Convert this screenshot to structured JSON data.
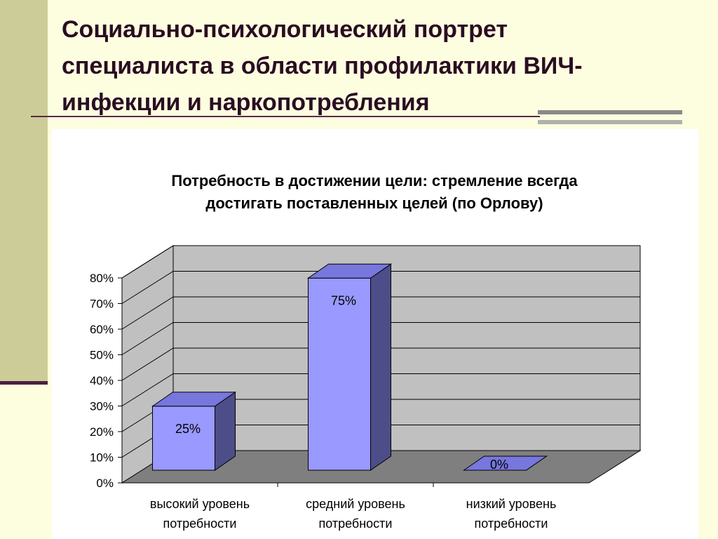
{
  "slide": {
    "title_lines": [
      "Социально-психологический портрет",
      "специалиста в области профилактики ВИЧ-",
      "инфекции и наркопотребления"
    ]
  },
  "chart_data": {
    "type": "bar",
    "title_lines": [
      "Потребность в достижении цели: стремление всегда",
      "достигать поставленных целей (по Орлову)"
    ],
    "categories": [
      [
        "высокий уровень",
        "потребности"
      ],
      [
        "средний уровень",
        "потребности"
      ],
      [
        "низкий уровень",
        "потребности"
      ]
    ],
    "values": [
      25,
      75,
      0
    ],
    "data_labels": [
      "25%",
      "75%",
      "0%"
    ],
    "y_ticks": [
      "0%",
      "10%",
      "20%",
      "30%",
      "40%",
      "50%",
      "60%",
      "70%",
      "80%"
    ],
    "ylim": [
      0,
      80
    ],
    "xlabel": "",
    "ylabel": "",
    "grid": true,
    "style": "3d",
    "colors": {
      "bar_front": "#9999ff",
      "bar_top": "#7777dd",
      "bar_side": "#4d4d8a",
      "wall": "#c0c0c0",
      "floor": "#7f7f7f"
    }
  }
}
